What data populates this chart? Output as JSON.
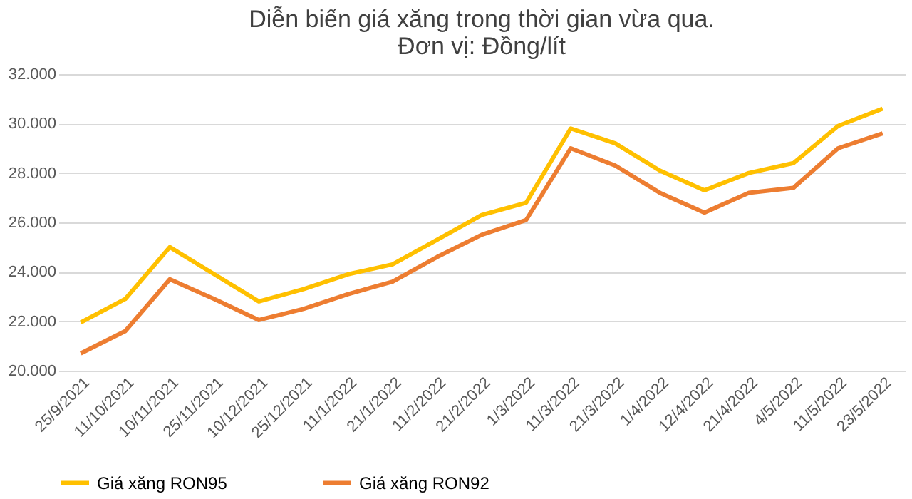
{
  "chart_data": {
    "type": "line",
    "title": "Diễn biến giá xăng trong thời gian vừa qua.\nĐơn vị: Đồng/lít",
    "categories": [
      "25/9/2021",
      "11/10/2021",
      "10/11/2021",
      "25/11/2021",
      "10/12/2021",
      "25/12/2021",
      "11/1/2022",
      "21/1/2022",
      "11/2/2022",
      "21/2/2022",
      "1/3/2022",
      "11/3/2022",
      "21/3/2022",
      "1/4/2022",
      "12/4/2022",
      "21/4/2022",
      "4/5/2022",
      "11/5/2022",
      "23/5/2022"
    ],
    "series": [
      {
        "name": "Giá xăng RON95",
        "color": "#ffc000",
        "values": [
          21950,
          22900,
          25000,
          23900,
          22800,
          23300,
          23900,
          24300,
          25300,
          26300,
          26800,
          29800,
          29200,
          28100,
          27300,
          28000,
          28400,
          29900,
          30600
        ]
      },
      {
        "name": "Giá xăng RON92",
        "color": "#ed7d31",
        "values": [
          20700,
          21600,
          23700,
          22900,
          22050,
          22500,
          23100,
          23600,
          24600,
          25500,
          26100,
          29000,
          28300,
          27200,
          26400,
          27200,
          27400,
          29000,
          29600
        ]
      }
    ],
    "ylim": [
      20000,
      32000
    ],
    "yticks": [
      {
        "value": 20000,
        "label": "20.000"
      },
      {
        "value": 22000,
        "label": "22.000"
      },
      {
        "value": 24000,
        "label": "24.000"
      },
      {
        "value": 26000,
        "label": "26.000"
      },
      {
        "value": 28000,
        "label": "28.000"
      },
      {
        "value": 30000,
        "label": "30.000"
      },
      {
        "value": 32000,
        "label": "32.000"
      }
    ],
    "grid": "y",
    "legend": "bottom",
    "marker": "none",
    "line_style": "solid"
  }
}
